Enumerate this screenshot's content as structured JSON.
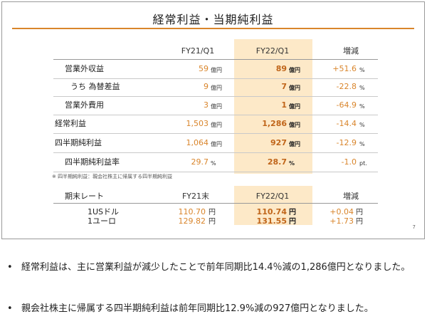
{
  "slide": {
    "title": "経常利益・当期純利益",
    "page_number": "7",
    "note": "※ 四半期純利益：親会社株主に帰属する四半期純利益"
  },
  "table1": {
    "headers": [
      "FY21/Q1",
      "FY22/Q1",
      "増減"
    ],
    "rows": [
      {
        "label": "営業外収益",
        "fy21": "59",
        "fy21_unit": "億円",
        "fy22": "89",
        "fy22_unit": "億円",
        "delta": "+51.6",
        "delta_unit": "%"
      },
      {
        "label": "うち 為替差益",
        "fy21": "9",
        "fy21_unit": "億円",
        "fy22": "7",
        "fy22_unit": "億円",
        "delta": "-22.8",
        "delta_unit": "%"
      },
      {
        "label": "営業外費用",
        "fy21": "3",
        "fy21_unit": "億円",
        "fy22": "1",
        "fy22_unit": "億円",
        "delta": "-64.9",
        "delta_unit": "%"
      },
      {
        "label": "経常利益",
        "fy21": "1,503",
        "fy21_unit": "億円",
        "fy22": "1,286",
        "fy22_unit": "億円",
        "delta": "-14.4",
        "delta_unit": "%"
      },
      {
        "label": "四半期純利益",
        "fy21": "1,064",
        "fy21_unit": "億円",
        "fy22": "927",
        "fy22_unit": "億円",
        "delta": "-12.9",
        "delta_unit": "%"
      },
      {
        "label": "四半期純利益率",
        "fy21": "29.7",
        "fy21_unit": "%",
        "fy22": "28.7",
        "fy22_unit": "%",
        "delta": "-1.0",
        "delta_unit": "pt."
      }
    ]
  },
  "table2": {
    "headers": [
      "期末レート",
      "FY21末",
      "FY22/Q1",
      "増減"
    ],
    "rows": [
      {
        "label": "1USドル",
        "fy21": "110.70",
        "fy21_unit": "円",
        "fy22": "110.74",
        "fy22_unit": "円",
        "delta": "+0.04",
        "delta_unit": "円"
      },
      {
        "label": "1ユーロ",
        "fy21": "129.82",
        "fy21_unit": "円",
        "fy22": "131.55",
        "fy22_unit": "円",
        "delta": "+1.73",
        "delta_unit": "円"
      }
    ]
  },
  "bullets": [
    "経常利益は、主に営業利益が減少したことで前年同期比14.4％減の1,286億円となりました。",
    "親会社株主に帰属する四半期純利益は前年同期比12.9%減の927億円となりました。"
  ],
  "colors": {
    "accent": "#d9852b",
    "highlight": "#fde9c8"
  }
}
